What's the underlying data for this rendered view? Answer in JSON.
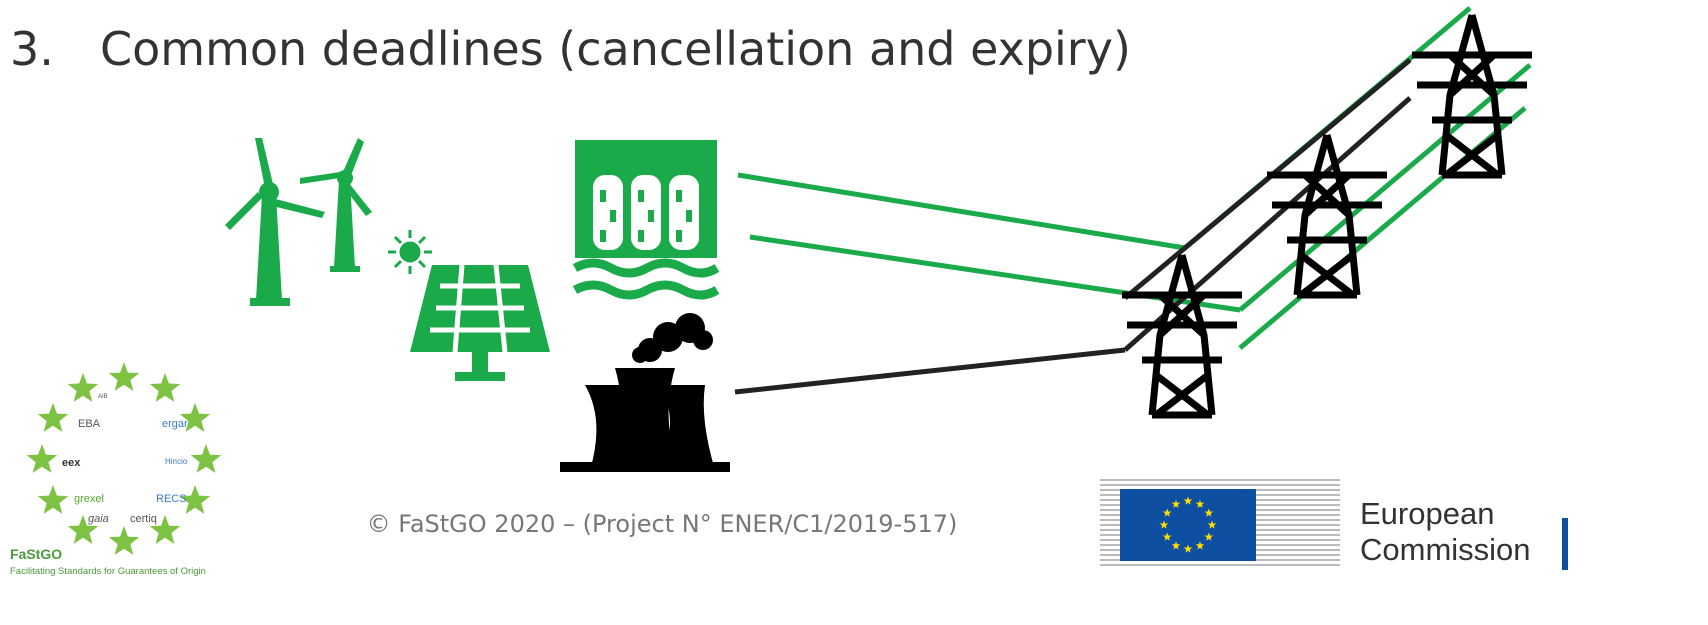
{
  "slide": {
    "number": "3.",
    "title": "Common deadlines (cancellation and expiry)",
    "footer": "© FaStGO 2020 – (Project N° ENER/C1/2019-517)",
    "fastgo_logo": {
      "name": "FaStGO",
      "tagline": "Facilitating Standards for Guarantees of Origin",
      "members": [
        "AIB",
        "EBA",
        "ergar",
        "eex",
        "Hincio",
        "grexel",
        "RECS",
        "gaia",
        "certiq"
      ]
    },
    "ec_logo": {
      "line1": "European",
      "line2": "Commission"
    }
  }
}
